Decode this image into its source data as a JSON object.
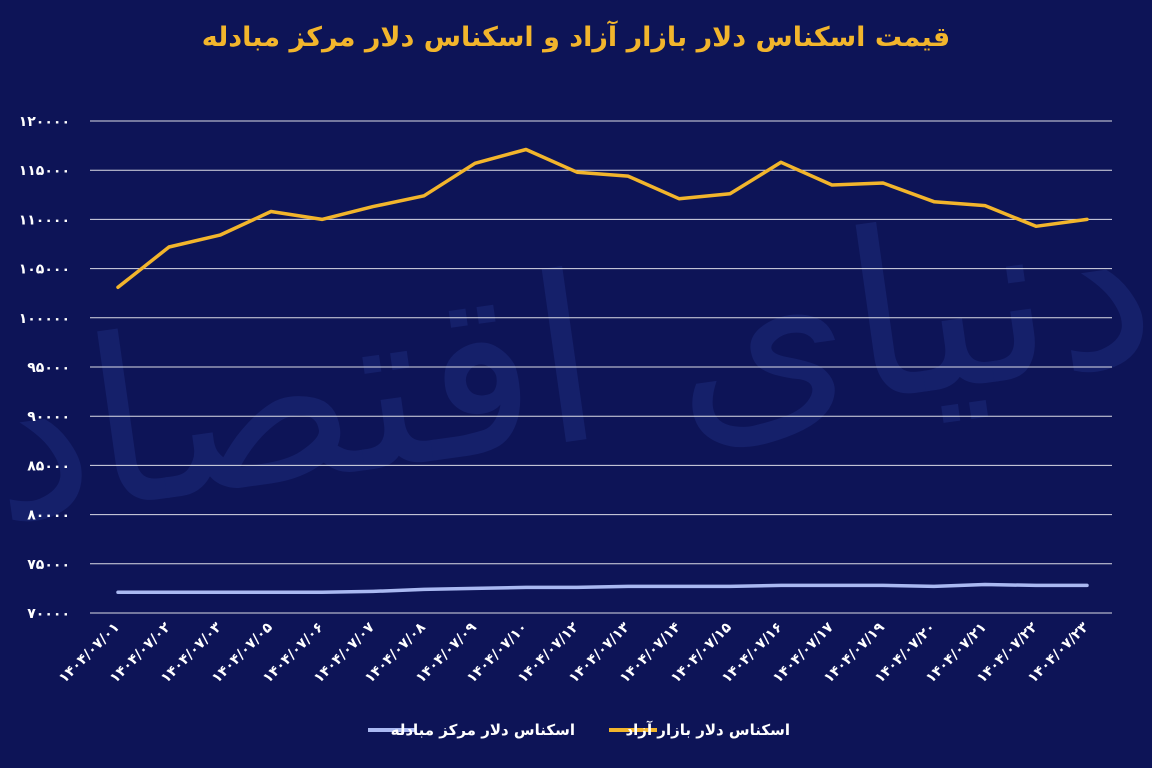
{
  "chart_data": {
    "type": "line",
    "title": "قیمت اسکناس دلار بازار آزاد و اسکناس دلار مرکز مبادله",
    "categories": [
      "۱۴۰۴/۰۷/۰۱",
      "۱۴۰۴/۰۷/۰۲",
      "۱۴۰۴/۰۷/۰۳",
      "۱۴۰۴/۰۷/۰۵",
      "۱۴۰۴/۰۷/۰۶",
      "۱۴۰۴/۰۷/۰۷",
      "۱۴۰۴/۰۷/۰۸",
      "۱۴۰۴/۰۷/۰۹",
      "۱۴۰۴/۰۷/۱۰",
      "۱۴۰۴/۰۷/۱۲",
      "۱۴۰۴/۰۷/۱۳",
      "۱۴۰۴/۰۷/۱۴",
      "۱۴۰۴/۰۷/۱۵",
      "۱۴۰۴/۰۷/۱۶",
      "۱۴۰۴/۰۷/۱۷",
      "۱۴۰۴/۰۷/۱۹",
      "۱۴۰۴/۰۷/۲۰",
      "۱۴۰۴/۰۷/۲۱",
      "۱۴۰۴/۰۷/۲۲",
      "۱۴۰۴/۰۷/۲۳"
    ],
    "series": [
      {
        "name": "اسکناس دلار بازار آزاد",
        "color": "#f2b52c",
        "values": [
          103100,
          107200,
          108400,
          110800,
          110000,
          111300,
          112400,
          115700,
          117100,
          114800,
          114400,
          112100,
          112600,
          115800,
          113500,
          113700,
          111800,
          111400,
          109300,
          110000
        ]
      },
      {
        "name": "اسکناس دلار مرکز مبادله",
        "color": "#aab9f2",
        "values": [
          72100,
          72100,
          72100,
          72100,
          72100,
          72200,
          72400,
          72500,
          72600,
          72600,
          72700,
          72700,
          72700,
          72800,
          72800,
          72800,
          72700,
          72900,
          72800,
          72800
        ]
      }
    ],
    "y_ticks": [
      "۱۲۰۰۰۰",
      "۱۱۵۰۰۰",
      "۱۱۰۰۰۰",
      "۱۰۵۰۰۰",
      "۱۰۰۰۰۰",
      "۹۵۰۰۰",
      "۹۰۰۰۰",
      "۸۵۰۰۰",
      "۸۰۰۰۰",
      "۷۵۰۰۰",
      "۷۰۰۰۰"
    ],
    "ylim": [
      70000,
      120000
    ],
    "grid": true,
    "legend_position": "bottom",
    "watermark": "دنیای اقتصاد"
  }
}
